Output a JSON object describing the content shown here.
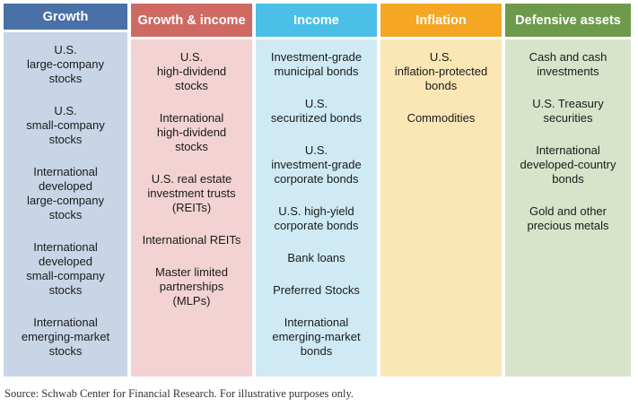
{
  "columns": [
    {
      "header": "Growth",
      "header_color": "#4a70a8",
      "body_color": "#c7d5e6",
      "items": [
        "U.S.\nlarge-company\nstocks",
        "U.S.\nsmall-company\nstocks",
        "International\ndeveloped\nlarge-company\nstocks",
        "International\ndeveloped\nsmall-company\nstocks",
        "International\nemerging-market\nstocks"
      ]
    },
    {
      "header": "Growth & income",
      "header_color": "#ce6a62",
      "body_color": "#f2d2d2",
      "items": [
        "U.S.\nhigh-dividend\nstocks",
        "International\nhigh-dividend\nstocks",
        "U.S. real estate\ninvestment trusts\n(REITs)",
        "International REITs",
        "Master limited\npartnerships\n(MLPs)"
      ]
    },
    {
      "header": "Income",
      "header_color": "#4bbfe6",
      "body_color": "#cfeaf4",
      "items": [
        "Investment-grade\nmunicipal bonds",
        "U.S.\nsecuritized bonds",
        "U.S.\ninvestment-grade\ncorporate bonds",
        "U.S. high-yield\ncorporate bonds",
        "Bank loans",
        "Preferred Stocks",
        "International\nemerging-market\nbonds"
      ]
    },
    {
      "header": "Inflation",
      "header_color": "#f5a623",
      "body_color": "#fbe7b6",
      "items": [
        "U.S.\ninflation-protected\nbonds",
        "Commodities"
      ]
    },
    {
      "header": "Defensive assets",
      "header_color": "#6e9a4b",
      "body_color": "#d7e4c9",
      "items": [
        "Cash and cash\ninvestments",
        "U.S. Treasury\nsecurities",
        "International\ndeveloped-country\nbonds",
        "Gold and other\nprecious metals"
      ]
    }
  ],
  "source": "Source: Schwab Center for Financial Research. For illustrative purposes only."
}
